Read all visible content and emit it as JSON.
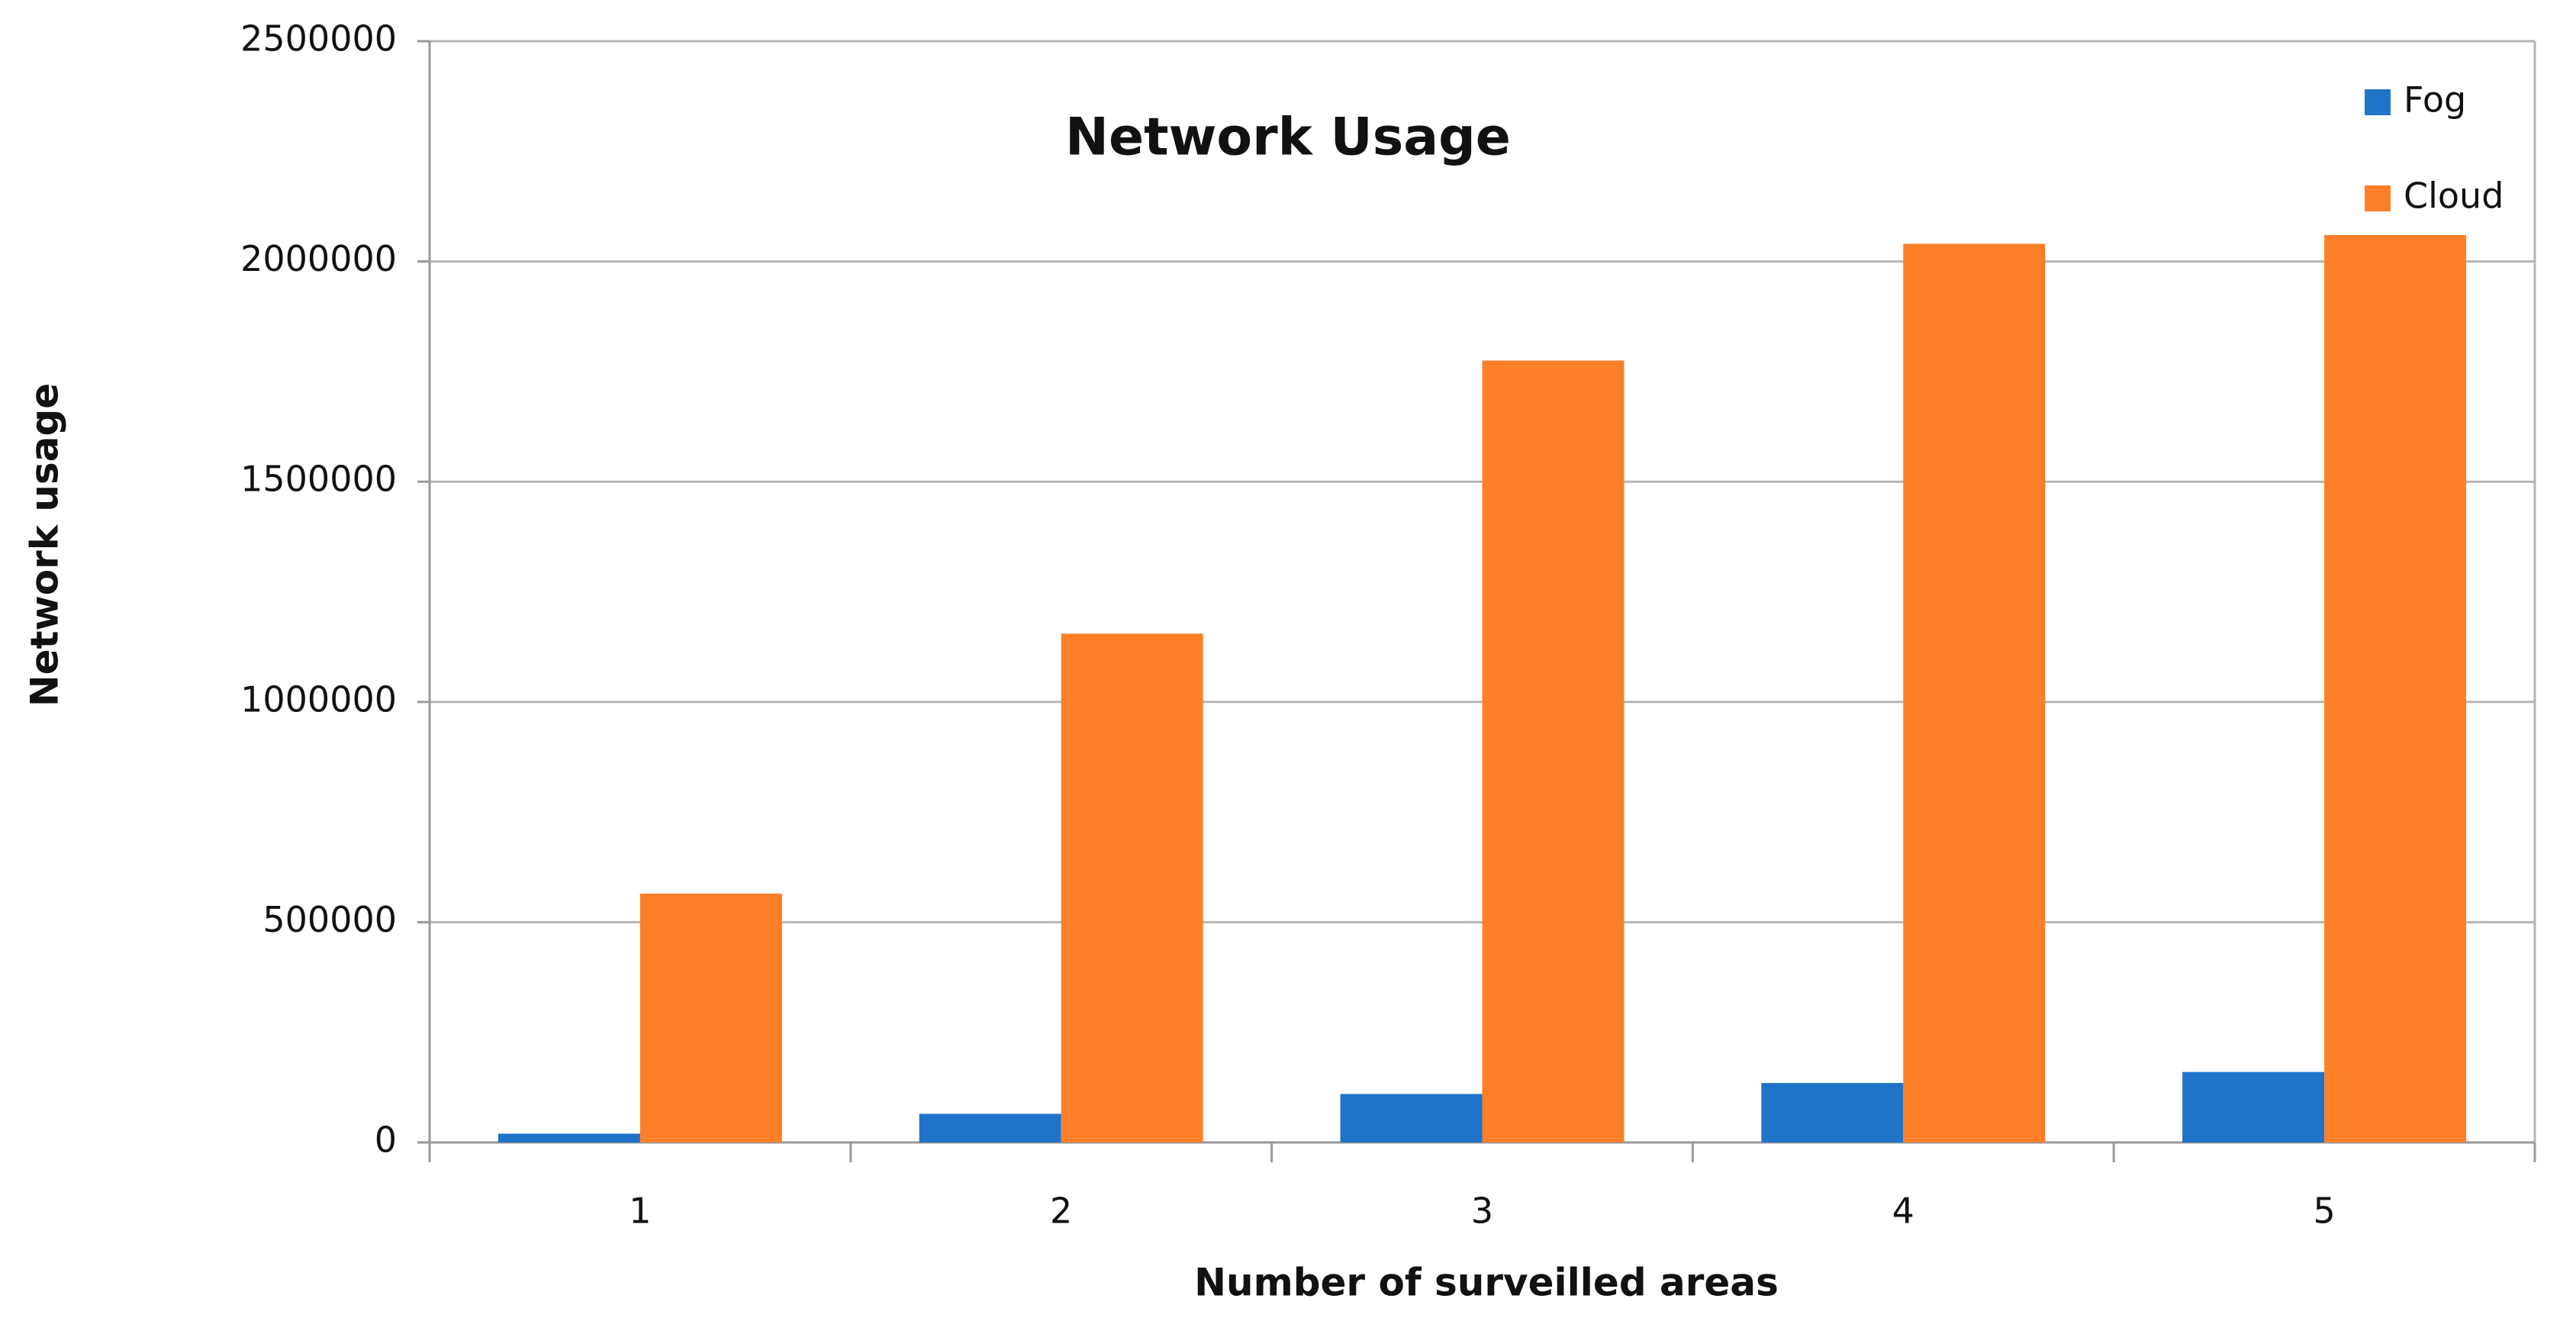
{
  "chart_data": {
    "type": "bar",
    "title": "Network Usage",
    "x_label": "Number of surveilled areas",
    "y_label": "Network usage",
    "categories": [
      "1",
      "2",
      "3",
      "4",
      "5"
    ],
    "series": [
      {
        "name": "Fog",
        "color": "#1f73c9",
        "values": [
          20000,
          65000,
          110000,
          135000,
          160000
        ]
      },
      {
        "name": "Cloud",
        "color": "#fd7f27",
        "values": [
          565000,
          1155000,
          1775000,
          2040000,
          2060000
        ]
      }
    ],
    "ylim": [
      0,
      2500000
    ],
    "yticks": [
      0,
      500000,
      1000000,
      1500000,
      2000000,
      2500000
    ],
    "grid": true,
    "legend_position": "top-right"
  }
}
